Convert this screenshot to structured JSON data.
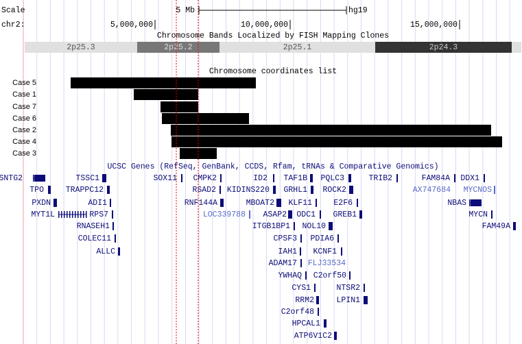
{
  "header": {
    "scale_label": "Scale",
    "scale_size": "5 Mb",
    "assembly": "hg19",
    "chrom": "chr2:",
    "positions": [
      "5,000,000",
      "10,000,000",
      "15,000,000"
    ]
  },
  "bands": {
    "title": "Chromosome Bands Localized by FISH Mapping Clones",
    "items": [
      "2p25.3",
      "2p25.2",
      "2p25.1",
      "2p24.3"
    ]
  },
  "cases": {
    "title": "Chromosome coordinates list",
    "items": [
      "Case 5",
      "Case 1",
      "Case 7",
      "Case 6",
      "Case 2",
      "Case 4",
      "Case 3"
    ]
  },
  "genes": {
    "title": "UCSC Genes (RefSeq, GenBank, CCDS, Rfam, tRNAs & Comparative Genomics)",
    "items": [
      "SNTG2",
      "TSSC1",
      "SOX11",
      "CMPK2",
      "ID2",
      "TAF1B",
      "PQLC3",
      "TRIB2",
      "FAM84A",
      "DDX1",
      "TPO",
      "TRAPPC12",
      "RSAD2",
      "KIDINS220",
      "GRHL1",
      "ROCK2",
      "AX747684",
      "MYCNOS",
      "PXDN",
      "ADI1",
      "RNF144A",
      "MBOAT2",
      "KLF11",
      "E2F6",
      "NBAS",
      "MYT1L",
      "RPS7",
      "LOC339788",
      "ASAP2",
      "ODC1",
      "GREB1",
      "MYCN",
      "RNASEH1",
      "ITGB1BP1",
      "NOL10",
      "FAM49A",
      "COLEC11",
      "CPSF3",
      "PDIA6",
      "ALLC",
      "IAH1",
      "KCNF1",
      "ADAM17",
      "FLJ33534",
      "YWHAQ",
      "C2orf50",
      "CYS1",
      "NTSR2",
      "RRM2",
      "LPIN1",
      "C2orf48",
      "HPCAL1",
      "ATP6V1C2"
    ]
  }
}
